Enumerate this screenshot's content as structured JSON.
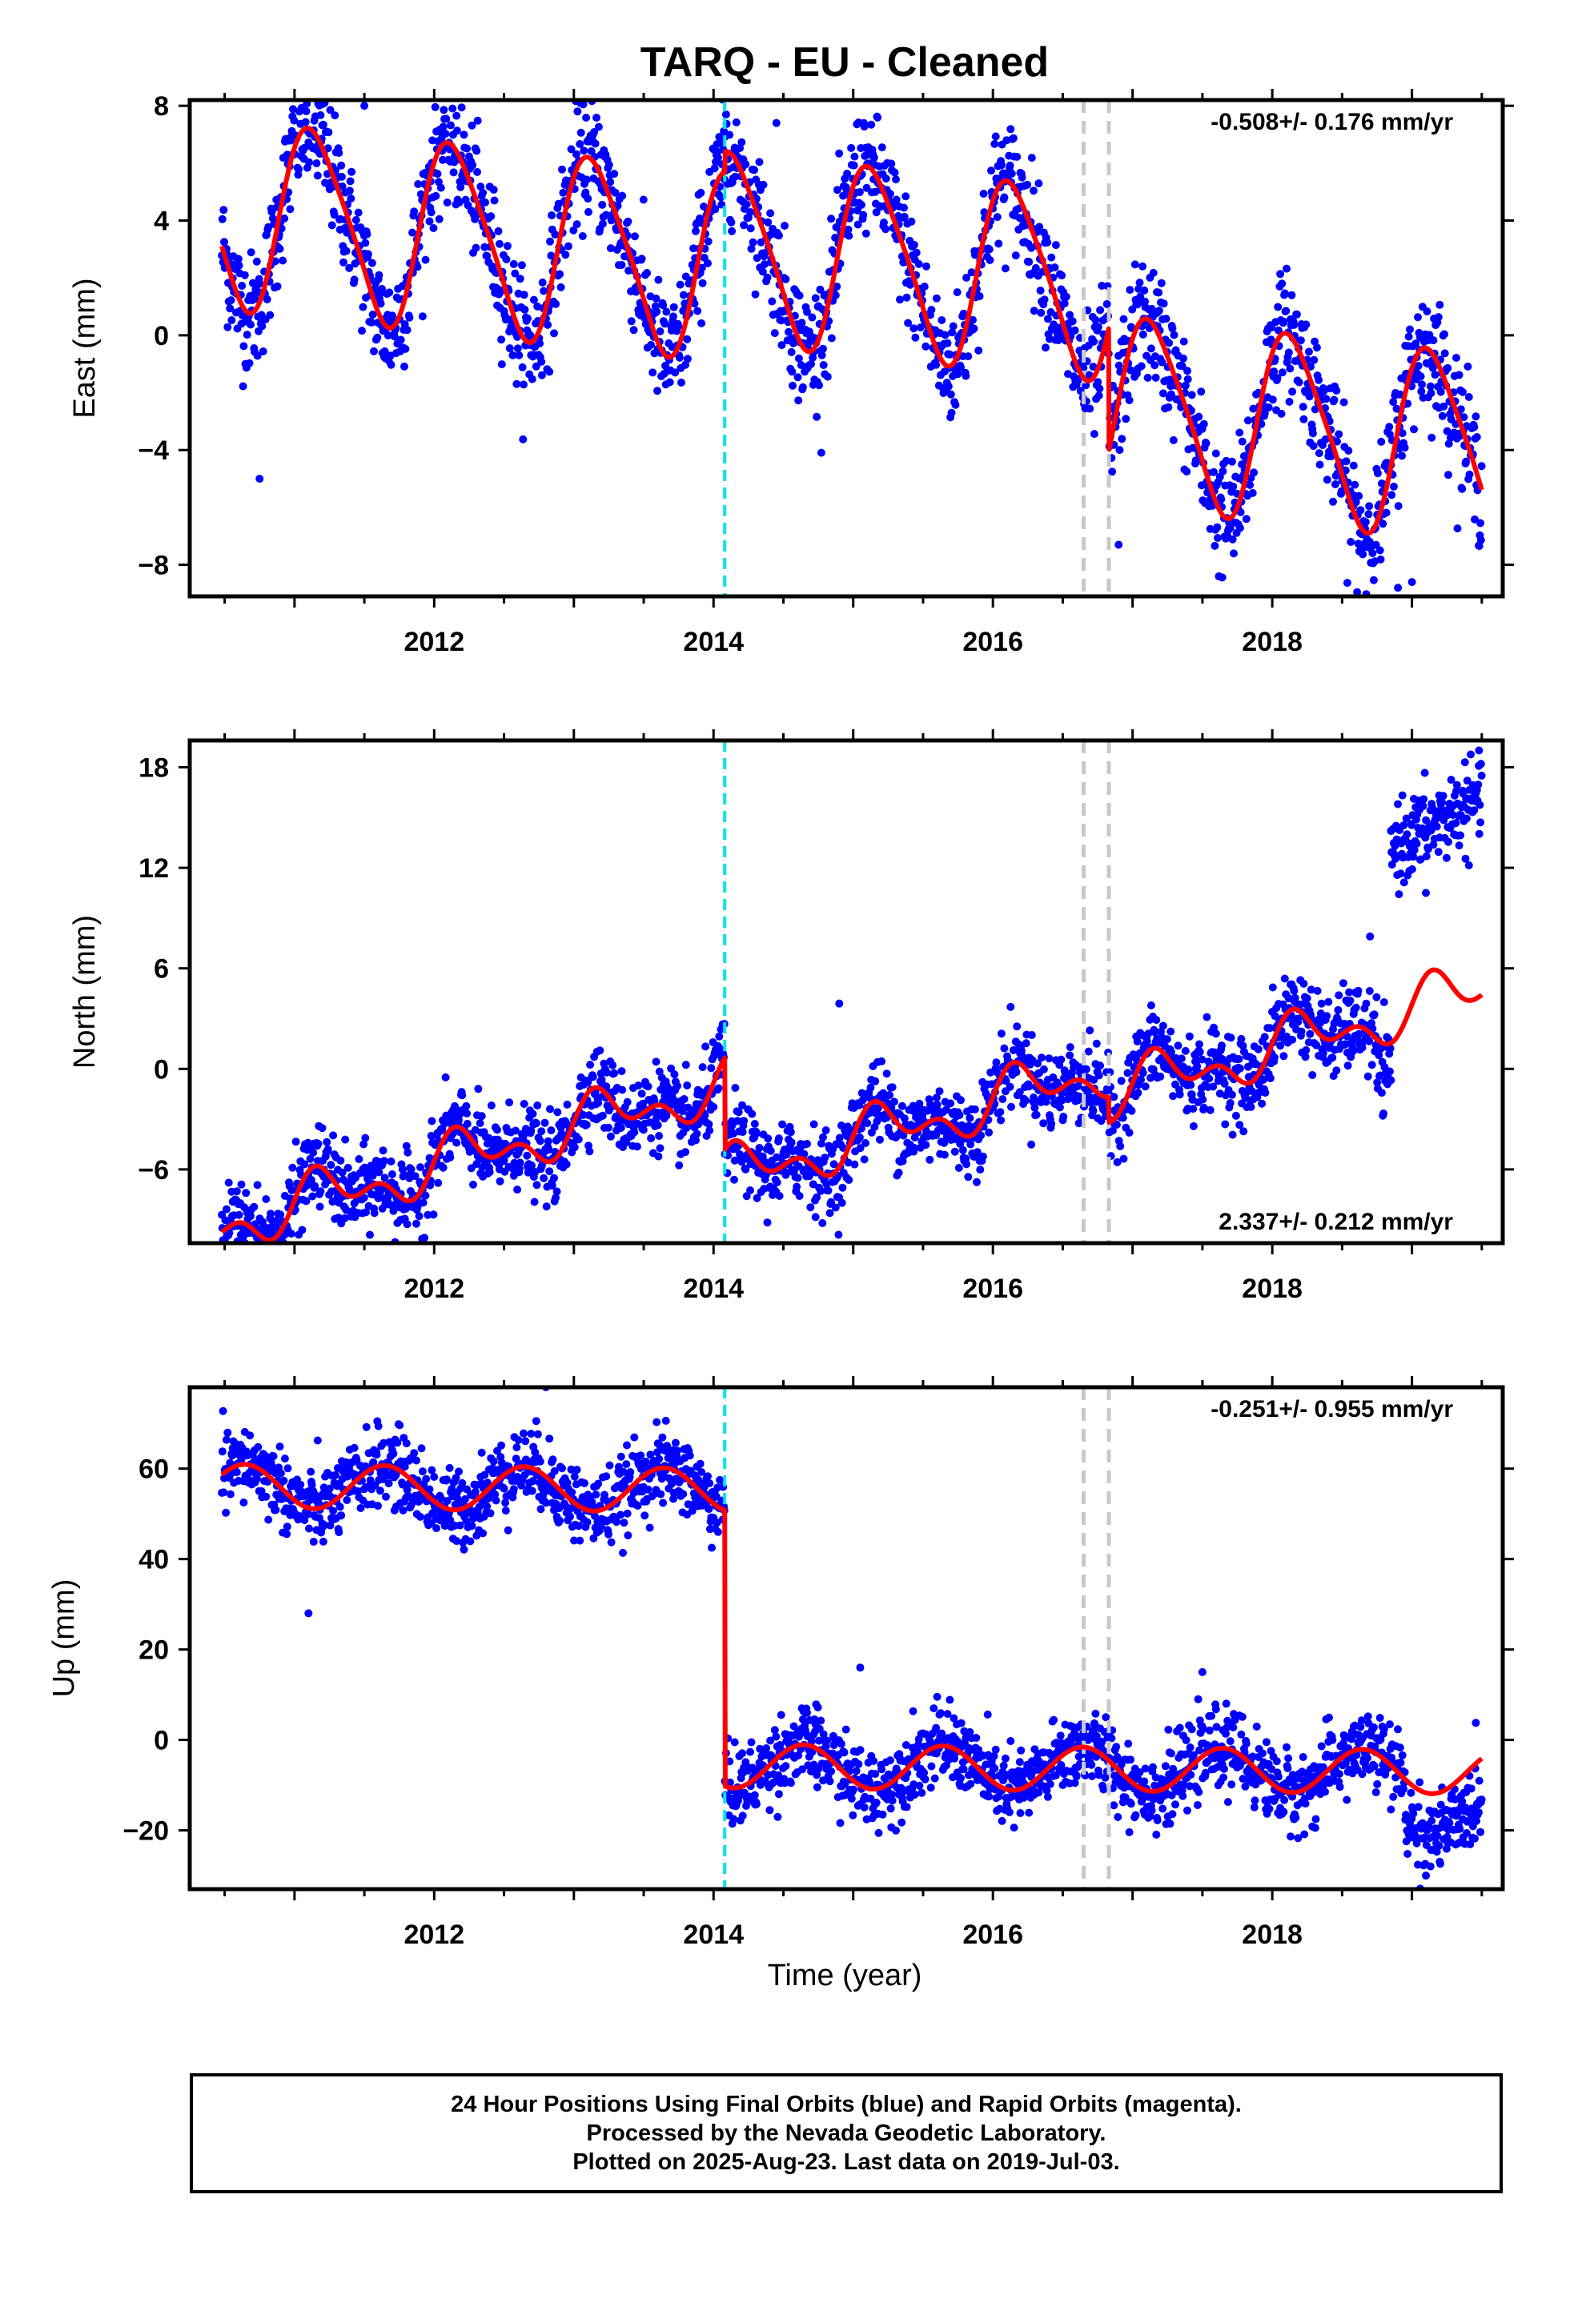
{
  "title": "TARQ  - EU - Cleaned",
  "xlabel": "Time (year)",
  "footer": {
    "line1": "24 Hour Positions Using Final Orbits (blue) and Rapid Orbits (magenta).",
    "line2": "Processed by the Nevada Geodetic Laboratory.",
    "line3": "Plotted on 2025-Aug-23. Last data on 2019-Jul-03."
  },
  "colors": {
    "points": "#0000ff",
    "model": "#ff0000",
    "equipment_change": "#00e5e5",
    "earthquake": "#c8c8c8"
  },
  "chart_data": [
    {
      "type": "scatter",
      "component": "East",
      "ylabel": "East (mm)",
      "rate": "-0.508+/- 0.176 mm/yr",
      "rate_position": "top-right",
      "xlim": [
        2010.25,
        2019.65
      ],
      "ylim": [
        -9.1,
        8.2
      ],
      "x_ticks": [
        2012,
        2014,
        2016,
        2018
      ],
      "y_ticks": [
        -8,
        -4,
        0,
        4,
        8
      ],
      "y_tick_labels": [
        "−8",
        "−4",
        "0",
        "4",
        "8"
      ],
      "vlines": {
        "cyan": [
          2014.08
        ],
        "gray": [
          2016.65,
          2016.83
        ]
      },
      "model": {
        "start": 2010.48,
        "end": 2019.5,
        "rate": -0.508,
        "ref": 2015.0,
        "offset0": 2.0,
        "annual_cos": 2.0,
        "annual_sin": 2.5,
        "semi_cos": 0.5,
        "semi_sin": 0.0,
        "steps": [
          {
            "t": 2014.08,
            "dy": 0.7
          },
          {
            "t": 2016.83,
            "dy": -4.3
          }
        ],
        "noise": 1.05
      },
      "samples": [
        {
          "x": 2011.5,
          "y": 8.0
        },
        {
          "x": 2010.75,
          "y": -5.0
        },
        {
          "x": 2016.9,
          "y": -7.3
        },
        {
          "x": 2018.9,
          "y": -8.8
        },
        {
          "x": 2019.0,
          "y": -8.6
        },
        {
          "x": 2014.45,
          "y": 7.4
        }
      ]
    },
    {
      "type": "scatter",
      "component": "North",
      "ylabel": "North (mm)",
      "rate": "2.337+/- 0.212 mm/yr",
      "rate_position": "bottom-right",
      "xlim": [
        2010.25,
        2019.65
      ],
      "ylim": [
        -10.4,
        19.6
      ],
      "x_ticks": [
        2012,
        2014,
        2016,
        2018
      ],
      "y_ticks": [
        -6,
        0,
        6,
        12,
        18
      ],
      "y_tick_labels": [
        "−6",
        "0",
        "6",
        "12",
        "18"
      ],
      "vlines": {
        "cyan": [
          2014.08
        ],
        "gray": [
          2016.65,
          2016.83
        ]
      },
      "model": {
        "start": 2010.48,
        "end": 2019.5,
        "rate": 2.337,
        "ref": 2015.0,
        "offset0": 1.2,
        "annual_cos": 0.3,
        "annual_sin": 1.2,
        "semi_cos": 0.0,
        "semi_sin": 0.9,
        "steps": [
          {
            "t": 2014.08,
            "dy": -5.5
          },
          {
            "t": 2016.83,
            "dy": -1.5
          }
        ],
        "noise": 1.2
      },
      "data_groups": [
        {
          "start": 2010.48,
          "end": 2018.75,
          "source": "model",
          "offset": 0.0
        },
        {
          "start": 2018.75,
          "end": 2018.85,
          "source": "model",
          "offset": -1.8
        },
        {
          "start": 2018.85,
          "end": 2019.5,
          "source": "trend",
          "base": 13.2,
          "slope": 4.5,
          "ref": 2018.85
        }
      ],
      "samples": [
        {
          "x": 2010.75,
          "y": -9.8
        },
        {
          "x": 2014.9,
          "y": 3.9
        },
        {
          "x": 2019.48,
          "y": 19.0
        },
        {
          "x": 2018.85,
          "y": 14.2
        },
        {
          "x": 2018.7,
          "y": 7.9
        },
        {
          "x": 2019.1,
          "y": 10.5
        }
      ]
    },
    {
      "type": "scatter",
      "component": "Up",
      "ylabel": "Up (mm)",
      "rate": "-0.251+/- 0.955 mm/yr",
      "rate_position": "top-right",
      "xlim": [
        2010.25,
        2019.65
      ],
      "ylim": [
        -33,
        78
      ],
      "x_ticks": [
        2012,
        2014,
        2016,
        2018
      ],
      "y_ticks": [
        -20,
        0,
        20,
        40,
        60
      ],
      "y_tick_labels": [
        "−20",
        "0",
        "20",
        "40",
        "60"
      ],
      "vlines": {
        "cyan": [
          2014.08
        ],
        "gray": [
          2016.65,
          2016.83
        ]
      },
      "model": {
        "start": 2010.48,
        "end": 2019.5,
        "rate": -0.251,
        "ref": 2015.0,
        "offset0": 55.0,
        "annual_cos": -3.0,
        "annual_sin": -3.8,
        "semi_cos": 0.0,
        "semi_sin": 0.0,
        "steps": [
          {
            "t": 2014.08,
            "dy": -61.0
          },
          {
            "t": 2016.83,
            "dy": 0.0
          }
        ],
        "noise": 4.2
      },
      "data_groups": [
        {
          "start": 2010.48,
          "end": 2018.95,
          "source": "model",
          "offset": 0.0
        },
        {
          "start": 2018.95,
          "end": 2019.5,
          "source": "model",
          "offset": -9.0
        }
      ],
      "samples": [
        {
          "x": 2012.8,
          "y": 78.0
        },
        {
          "x": 2011.1,
          "y": 28.0
        },
        {
          "x": 2015.05,
          "y": 16.0
        },
        {
          "x": 2017.5,
          "y": 15.0
        },
        {
          "x": 2019.1,
          "y": -30.0
        }
      ]
    }
  ]
}
